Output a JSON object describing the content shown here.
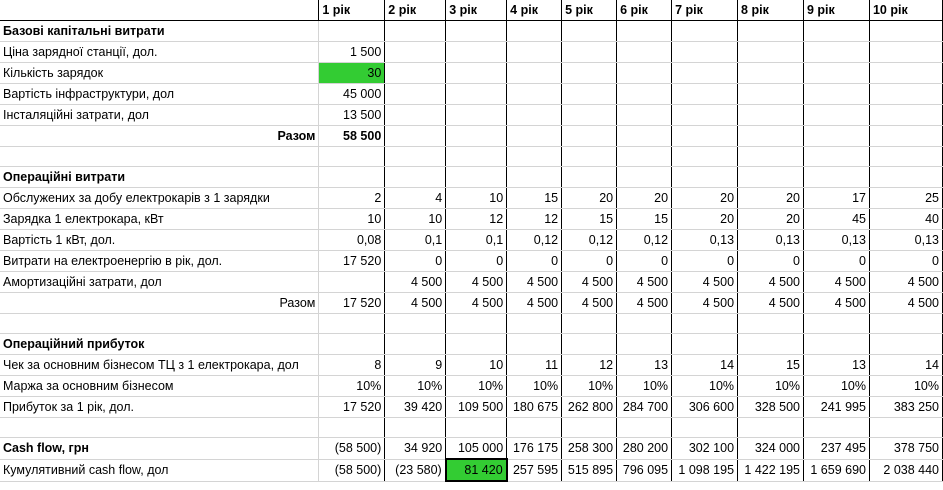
{
  "highlight_color": "#33cc33",
  "header": [
    "",
    "1 рік",
    "2 рік",
    "3 рік",
    "4 рік",
    "5 рік",
    "6 рік",
    "7 рік",
    "8 рік",
    "9 рік",
    "10 рік"
  ],
  "rows": [
    {
      "label": "Базові капітальні витрати",
      "type": "section",
      "values": [
        "",
        "",
        "",
        "",
        "",
        "",
        "",
        "",
        "",
        ""
      ]
    },
    {
      "label": "Ціна зарядної станції, дол.",
      "type": "data",
      "values": [
        "1 500",
        "",
        "",
        "",
        "",
        "",
        "",
        "",
        "",
        ""
      ]
    },
    {
      "label": "Кількість зарядок",
      "type": "data",
      "values": [
        "30",
        "",
        "",
        "",
        "",
        "",
        "",
        "",
        "",
        ""
      ]
    },
    {
      "label": "Вартість інфраструктури, дол",
      "type": "data",
      "values": [
        "45 000",
        "",
        "",
        "",
        "",
        "",
        "",
        "",
        "",
        ""
      ]
    },
    {
      "label": "Інсталяційні затрати, дол",
      "type": "data",
      "values": [
        "13 500",
        "",
        "",
        "",
        "",
        "",
        "",
        "",
        "",
        ""
      ]
    },
    {
      "label": "Разом",
      "type": "total-bold",
      "values": [
        "58 500",
        "",
        "",
        "",
        "",
        "",
        "",
        "",
        "",
        ""
      ]
    },
    {
      "label": "",
      "type": "blank",
      "values": [
        "",
        "",
        "",
        "",
        "",
        "",
        "",
        "",
        "",
        ""
      ]
    },
    {
      "label": "Операційні витрати",
      "type": "section",
      "values": [
        "",
        "",
        "",
        "",
        "",
        "",
        "",
        "",
        "",
        ""
      ]
    },
    {
      "label": "Обслужених за добу електрокарів з 1 зарядки",
      "type": "data",
      "values": [
        "2",
        "4",
        "10",
        "15",
        "20",
        "20",
        "20",
        "20",
        "17",
        "25"
      ]
    },
    {
      "label": "Зарядка 1 електрокара, кВт",
      "type": "data",
      "values": [
        "10",
        "10",
        "12",
        "12",
        "15",
        "15",
        "20",
        "20",
        "45",
        "40"
      ]
    },
    {
      "label": "Вартість 1 кВт, дол.",
      "type": "data",
      "values": [
        "0,08",
        "0,1",
        "0,1",
        "0,12",
        "0,12",
        "0,12",
        "0,13",
        "0,13",
        "0,13",
        "0,13"
      ]
    },
    {
      "label": "Витрати на електроенергію в рік, дол.",
      "type": "data",
      "values": [
        "17 520",
        "0",
        "0",
        "0",
        "0",
        "0",
        "0",
        "0",
        "0",
        "0"
      ]
    },
    {
      "label": "Амортизаційні затрати, дол",
      "type": "data",
      "values": [
        "",
        "4 500",
        "4 500",
        "4 500",
        "4 500",
        "4 500",
        "4 500",
        "4 500",
        "4 500",
        "4 500"
      ]
    },
    {
      "label": "Разом",
      "type": "total-plain",
      "values": [
        "17 520",
        "4 500",
        "4 500",
        "4 500",
        "4 500",
        "4 500",
        "4 500",
        "4 500",
        "4 500",
        "4 500"
      ]
    },
    {
      "label": "",
      "type": "blank",
      "values": [
        "",
        "",
        "",
        "",
        "",
        "",
        "",
        "",
        "",
        ""
      ]
    },
    {
      "label": "Операційний прибуток",
      "type": "section",
      "values": [
        "",
        "",
        "",
        "",
        "",
        "",
        "",
        "",
        "",
        ""
      ]
    },
    {
      "label": "Чек за основним бізнесом ТЦ з 1 електрокара, дол",
      "type": "data",
      "values": [
        "8",
        "9",
        "10",
        "11",
        "12",
        "13",
        "14",
        "15",
        "13",
        "14"
      ]
    },
    {
      "label": "Маржа за основним бізнесом",
      "type": "data",
      "values": [
        "10%",
        "10%",
        "10%",
        "10%",
        "10%",
        "10%",
        "10%",
        "10%",
        "10%",
        "10%"
      ]
    },
    {
      "label": "Прибуток за 1 рік, дол.",
      "type": "data",
      "values": [
        "17 520",
        "39 420",
        "109 500",
        "180 675",
        "262 800",
        "284 700",
        "306 600",
        "328 500",
        "241 995",
        "383 250"
      ]
    },
    {
      "label": "",
      "type": "blank",
      "values": [
        "",
        "",
        "",
        "",
        "",
        "",
        "",
        "",
        "",
        ""
      ]
    },
    {
      "label": "Cash flow, грн",
      "type": "section",
      "values": [
        "(58 500)",
        "34 920",
        "105 000",
        "176 175",
        "258 300",
        "280 200",
        "302 100",
        "324 000",
        "237 495",
        "378 750"
      ]
    },
    {
      "label": "Кумулятивний cash flow, дол",
      "type": "data",
      "values": [
        "(58 500)",
        "(23 580)",
        "81 420",
        "257 595",
        "515 895",
        "796 095",
        "1 098 195",
        "1 422 195",
        "1 659 690",
        "2 038 440"
      ]
    }
  ]
}
